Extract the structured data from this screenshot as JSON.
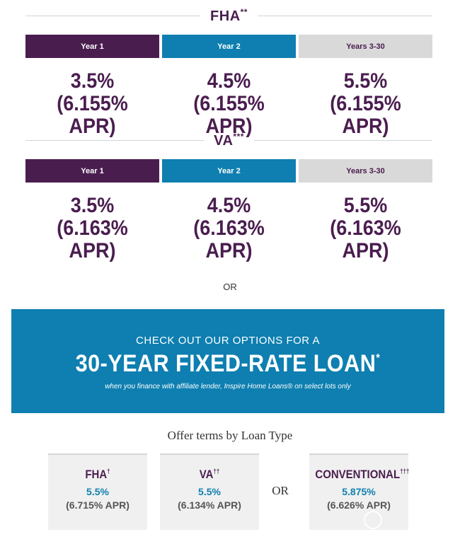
{
  "fha_section": {
    "title": "FHA",
    "title_mark": "**",
    "tabs": [
      "Year 1",
      "Year 2",
      "Years 3-30"
    ],
    "rates": [
      {
        "rate": "3.5%",
        "apr": "(6.155% APR)"
      },
      {
        "rate": "4.5%",
        "apr": "(6.155% APR)"
      },
      {
        "rate": "5.5%",
        "apr": "(6.155% APR)"
      }
    ]
  },
  "va_section": {
    "title": "VA",
    "title_mark": "***",
    "tabs": [
      "Year 1",
      "Year 2",
      "Years 3-30"
    ],
    "rates": [
      {
        "rate": "3.5%",
        "apr": "(6.163% APR)"
      },
      {
        "rate": "4.5%",
        "apr": "(6.163% APR)"
      },
      {
        "rate": "5.5%",
        "apr": "(6.163% APR)"
      }
    ]
  },
  "or_text": "OR",
  "banner": {
    "line1": "CHECK OUT OUR OPTIONS FOR A",
    "line2": "30-YEAR FIXED-RATE LOAN",
    "line2_mark": "*",
    "line3": "when you finance with affiliate lender, Inspire Home Loans® on select lots only"
  },
  "offer": {
    "title": "Offer terms by Loan Type",
    "or_text": "OR",
    "cards": [
      {
        "type": "FHA",
        "mark": "†",
        "rate": "5.5%",
        "apr": "(6.715% APR)"
      },
      {
        "type": "VA",
        "mark": "††",
        "rate": "5.5%",
        "apr": "(6.134% APR)"
      },
      {
        "type": "CONVENTIONAL",
        "mark": "†††",
        "rate": "5.875%",
        "apr": "(6.626% APR)"
      }
    ]
  },
  "colors": {
    "purple": "#4a1d4f",
    "blue": "#0e7fb0",
    "gray": "#d9d9d9"
  }
}
